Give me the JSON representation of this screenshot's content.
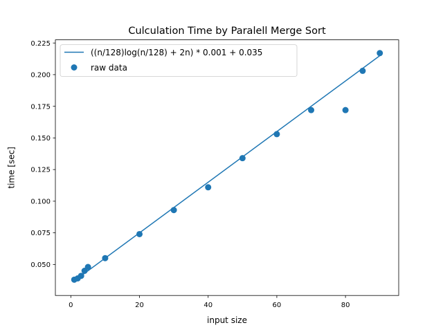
{
  "chart_data": {
    "type": "scatter",
    "title": "Culculation Time by Paralell Merge Sort",
    "xlabel": "input size",
    "ylabel": "time [sec]",
    "xlim": [
      -4.5,
      95.5
    ],
    "ylim": [
      0.0255,
      0.2275
    ],
    "xticks": [
      0,
      20,
      40,
      60,
      80
    ],
    "xtick_labels": [
      "0",
      "20",
      "40",
      "60",
      "80"
    ],
    "yticks": [
      0.05,
      0.075,
      0.1,
      0.125,
      0.15,
      0.175,
      0.2,
      0.225
    ],
    "ytick_labels": [
      "0.050",
      "0.075",
      "0.100",
      "0.125",
      "0.150",
      "0.175",
      "0.200",
      "0.225"
    ],
    "grid": false,
    "legend_position": "upper-left",
    "color": "#1f77b4",
    "fit_line": {
      "name": "((n/128)log(n/128) + 2n) * 0.001 +  0.035",
      "x": [
        1,
        90
      ],
      "y": [
        0.037,
        0.215
      ]
    },
    "series": [
      {
        "name": "raw data",
        "x": [
          1,
          2,
          3,
          4,
          5,
          10,
          20,
          30,
          40,
          50,
          60,
          70,
          80,
          85,
          90
        ],
        "y": [
          0.038,
          0.039,
          0.041,
          0.045,
          0.048,
          0.055,
          0.074,
          0.093,
          0.111,
          0.134,
          0.153,
          0.172,
          0.172,
          0.203,
          0.217
        ]
      }
    ]
  }
}
